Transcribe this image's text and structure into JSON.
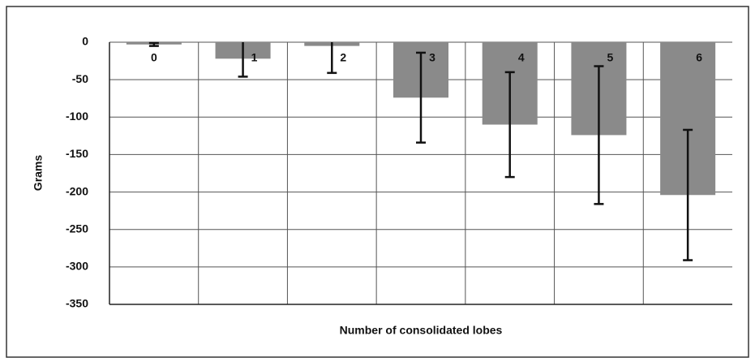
{
  "chart_data": {
    "type": "bar",
    "categories": [
      "0",
      "1",
      "2",
      "3",
      "4",
      "5",
      "6"
    ],
    "values": [
      -3,
      -22,
      -5,
      -74,
      -110,
      -124,
      -204
    ],
    "errors": [
      2,
      24,
      36,
      60,
      70,
      92,
      87
    ],
    "color": "#8a8a8a",
    "y_label": "Grams",
    "x_label": "Number of consolidated lobes",
    "ylim": [
      -350,
      0
    ],
    "yticks": [
      0,
      -50,
      -100,
      -150,
      -200,
      -250,
      -300,
      -350
    ],
    "grid": true
  }
}
